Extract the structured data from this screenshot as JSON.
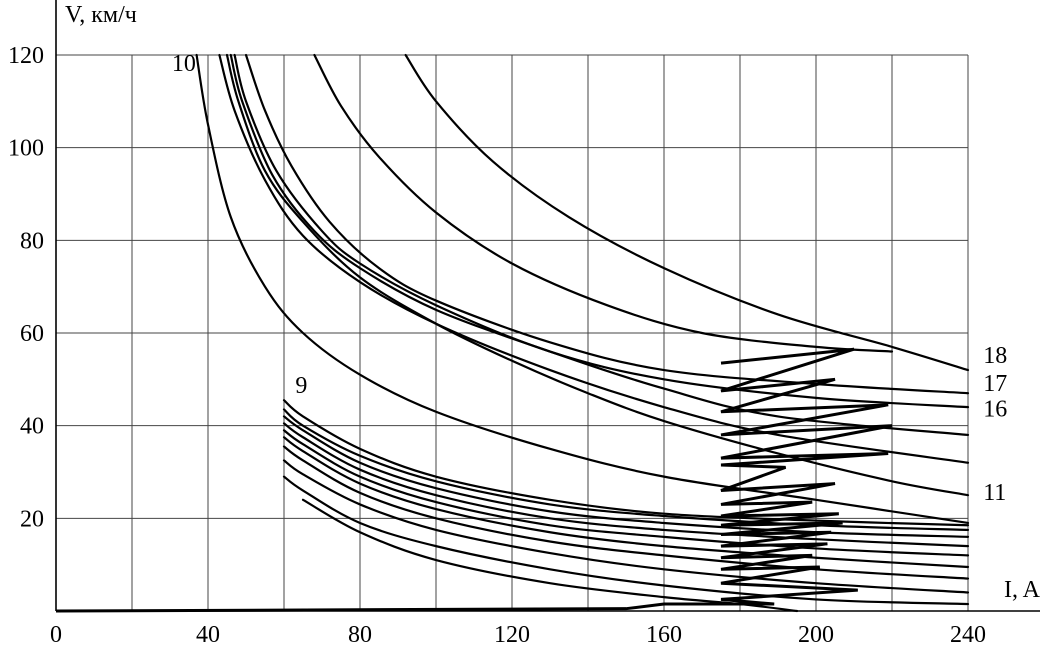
{
  "chart_data": {
    "type": "line",
    "title": "",
    "xlabel": "I, A",
    "ylabel": "V, км/ч",
    "xlim": [
      0,
      240
    ],
    "ylim": [
      0,
      120
    ],
    "x_ticks": [
      0,
      40,
      80,
      120,
      160,
      200,
      240
    ],
    "y_ticks": [
      20,
      40,
      60,
      80,
      100,
      120
    ],
    "x_gridlines": [
      20,
      40,
      60,
      80,
      100,
      120,
      140,
      160,
      180,
      200,
      220,
      240
    ],
    "y_gridlines": [
      20,
      40,
      60,
      80,
      100,
      120
    ],
    "grid": true,
    "line_color": "#000000",
    "grid_color": "#444444",
    "curve_labels": [
      {
        "text": "10",
        "x": 30.5,
        "y": 116.5
      },
      {
        "text": "9",
        "x": 63,
        "y": 47
      },
      {
        "text": "18",
        "x": 244,
        "y": 53.5
      },
      {
        "text": "17",
        "x": 244,
        "y": 47.5
      },
      {
        "text": "16",
        "x": 244,
        "y": 42
      },
      {
        "text": "11",
        "x": 244,
        "y": 24
      }
    ],
    "series": [
      {
        "name": "10",
        "points": [
          [
            37,
            120
          ],
          [
            40,
            105
          ],
          [
            46,
            85
          ],
          [
            55,
            70
          ],
          [
            65,
            60
          ],
          [
            80,
            51
          ],
          [
            100,
            43
          ],
          [
            130,
            35
          ],
          [
            160,
            29
          ],
          [
            200,
            24
          ],
          [
            240,
            19
          ]
        ]
      },
      {
        "name": "",
        "points": [
          [
            43,
            120
          ],
          [
            47,
            108
          ],
          [
            55,
            93
          ],
          [
            65,
            81
          ],
          [
            80,
            71
          ],
          [
            100,
            62
          ],
          [
            130,
            52
          ],
          [
            160,
            44
          ],
          [
            190,
            38
          ],
          [
            240,
            32
          ]
        ]
      },
      {
        "name": "11",
        "points": [
          [
            45,
            120
          ],
          [
            48,
            110
          ],
          [
            55,
            95
          ],
          [
            65,
            84
          ],
          [
            80,
            72
          ],
          [
            100,
            62
          ],
          [
            120,
            54
          ],
          [
            140,
            47
          ],
          [
            160,
            41
          ],
          [
            190,
            34
          ],
          [
            220,
            28
          ],
          [
            240,
            25
          ]
        ]
      },
      {
        "name": "",
        "points": [
          [
            46,
            120
          ],
          [
            49,
            110
          ],
          [
            57,
            94
          ],
          [
            68,
            82
          ],
          [
            80,
            74
          ],
          [
            100,
            65
          ],
          [
            130,
            56
          ],
          [
            160,
            48
          ],
          [
            190,
            42
          ],
          [
            240,
            38
          ]
        ]
      },
      {
        "name": "16",
        "points": [
          [
            47,
            120
          ],
          [
            50,
            110
          ],
          [
            58,
            95
          ],
          [
            70,
            82
          ],
          [
            80,
            75
          ],
          [
            100,
            66
          ],
          [
            130,
            56
          ],
          [
            160,
            50
          ],
          [
            200,
            46
          ],
          [
            240,
            44
          ]
        ]
      },
      {
        "name": "17",
        "points": [
          [
            50,
            120
          ],
          [
            55,
            108
          ],
          [
            62,
            96
          ],
          [
            72,
            84
          ],
          [
            85,
            74
          ],
          [
            100,
            67
          ],
          [
            130,
            58
          ],
          [
            160,
            52
          ],
          [
            200,
            49
          ],
          [
            240,
            47
          ]
        ]
      },
      {
        "name": "",
        "points": [
          [
            68,
            120
          ],
          [
            75,
            109
          ],
          [
            85,
            98
          ],
          [
            100,
            86
          ],
          [
            120,
            75
          ],
          [
            145,
            66
          ],
          [
            170,
            60
          ],
          [
            200,
            57
          ],
          [
            220,
            56
          ]
        ]
      },
      {
        "name": "18",
        "points": [
          [
            92,
            120
          ],
          [
            100,
            110
          ],
          [
            115,
            97
          ],
          [
            135,
            85
          ],
          [
            160,
            74
          ],
          [
            190,
            64
          ],
          [
            220,
            57
          ],
          [
            240,
            52
          ]
        ]
      },
      {
        "name": "9",
        "points": [
          [
            60,
            45.5
          ],
          [
            65,
            42
          ],
          [
            80,
            35
          ],
          [
            100,
            29
          ],
          [
            130,
            24
          ],
          [
            160,
            21
          ],
          [
            200,
            19.5
          ],
          [
            240,
            18.5
          ]
        ]
      },
      {
        "name": "",
        "points": [
          [
            60,
            43.5
          ],
          [
            65,
            40
          ],
          [
            80,
            33.5
          ],
          [
            100,
            28
          ],
          [
            130,
            23
          ],
          [
            160,
            20.5
          ],
          [
            200,
            18.5
          ],
          [
            240,
            17.5
          ]
        ]
      },
      {
        "name": "",
        "points": [
          [
            60,
            42
          ],
          [
            65,
            39
          ],
          [
            80,
            32
          ],
          [
            100,
            26.5
          ],
          [
            130,
            21.5
          ],
          [
            160,
            19
          ],
          [
            200,
            17
          ],
          [
            240,
            16
          ]
        ]
      },
      {
        "name": "",
        "points": [
          [
            60,
            40.5
          ],
          [
            65,
            37.5
          ],
          [
            80,
            30.5
          ],
          [
            100,
            25
          ],
          [
            130,
            20
          ],
          [
            160,
            17.5
          ],
          [
            200,
            15.5
          ],
          [
            240,
            14
          ]
        ]
      },
      {
        "name": "",
        "points": [
          [
            60,
            39
          ],
          [
            65,
            36
          ],
          [
            80,
            29
          ],
          [
            100,
            23.5
          ],
          [
            130,
            18.5
          ],
          [
            160,
            16
          ],
          [
            200,
            13.5
          ],
          [
            240,
            12
          ]
        ]
      },
      {
        "name": "",
        "points": [
          [
            60,
            37.5
          ],
          [
            65,
            34.5
          ],
          [
            80,
            27.5
          ],
          [
            100,
            22
          ],
          [
            130,
            17
          ],
          [
            160,
            14
          ],
          [
            200,
            11.5
          ],
          [
            240,
            9.5
          ]
        ]
      },
      {
        "name": "",
        "points": [
          [
            60,
            35.5
          ],
          [
            65,
            32.5
          ],
          [
            80,
            25.5
          ],
          [
            100,
            20
          ],
          [
            130,
            15
          ],
          [
            160,
            12
          ],
          [
            200,
            9
          ],
          [
            240,
            7
          ]
        ]
      },
      {
        "name": "",
        "points": [
          [
            60,
            32.5
          ],
          [
            65,
            29.5
          ],
          [
            80,
            23
          ],
          [
            100,
            17.5
          ],
          [
            130,
            12.5
          ],
          [
            160,
            9
          ],
          [
            200,
            6
          ],
          [
            240,
            4
          ]
        ]
      },
      {
        "name": "",
        "points": [
          [
            60,
            29
          ],
          [
            65,
            26
          ],
          [
            80,
            19
          ],
          [
            100,
            14
          ],
          [
            130,
            9
          ],
          [
            160,
            5.5
          ],
          [
            200,
            2.5
          ],
          [
            240,
            1.5
          ]
        ]
      },
      {
        "name": "",
        "points": [
          [
            65,
            24
          ],
          [
            80,
            17
          ],
          [
            100,
            11
          ],
          [
            130,
            6
          ],
          [
            160,
            3
          ],
          [
            180,
            1.5
          ],
          [
            195,
            0
          ]
        ]
      }
    ],
    "zigzag": {
      "points": [
        [
          175,
          53.5
        ],
        [
          210,
          56.5
        ],
        [
          175,
          47.5
        ],
        [
          205,
          50
        ],
        [
          175,
          43
        ],
        [
          219,
          44.5
        ],
        [
          175,
          38
        ],
        [
          220,
          40
        ],
        [
          175,
          33
        ],
        [
          219,
          34
        ],
        [
          175,
          31.5
        ],
        [
          192,
          31
        ],
        [
          175,
          26
        ],
        [
          205,
          27.5
        ],
        [
          175,
          23
        ],
        [
          199,
          23.5
        ],
        [
          175,
          20.5
        ],
        [
          206,
          21
        ],
        [
          175,
          18.5
        ],
        [
          207,
          19
        ],
        [
          175,
          16.5
        ],
        [
          204,
          17
        ],
        [
          175,
          14
        ],
        [
          203,
          14.5
        ],
        [
          175,
          11.5
        ],
        [
          199,
          12
        ],
        [
          175,
          9
        ],
        [
          201,
          9.5
        ],
        [
          175,
          6
        ],
        [
          211,
          4.5
        ],
        [
          175,
          2.5
        ],
        [
          189,
          1.5
        ],
        [
          160,
          1.5
        ],
        [
          150,
          0.5
        ],
        [
          0,
          0
        ]
      ]
    }
  }
}
